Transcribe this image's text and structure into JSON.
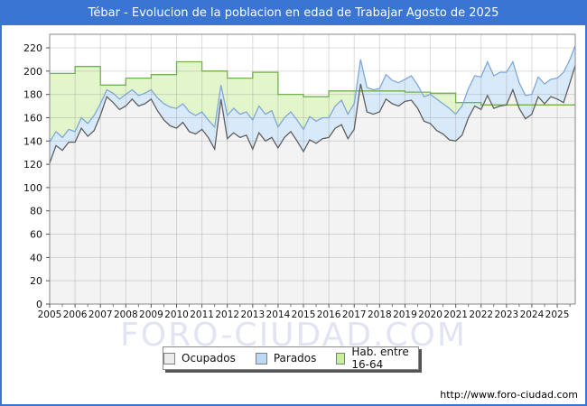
{
  "title_bar": {
    "text": "Tébar - Evolucion de la poblacion en edad de Trabajar Agosto de 2025",
    "bg": "#3a75d4",
    "text_color": "#ffffff"
  },
  "watermark": {
    "text": "FORO-CIUDAD.COM",
    "color": "#e2e4f4"
  },
  "footer": {
    "url_label": "http://www.foro-ciudad.com"
  },
  "legend": {
    "items": [
      {
        "label": "Ocupados",
        "swatch_fill": "#ececec",
        "swatch_border": "#808080"
      },
      {
        "label": "Parados",
        "swatch_fill": "#bcd8f2",
        "swatch_border": "#808080"
      },
      {
        "label": "Hab. entre 16-64",
        "swatch_fill": "#c9ee9e",
        "swatch_border": "#808080"
      }
    ]
  },
  "chart_data": {
    "type": "area",
    "title": "Tébar - Evolucion de la poblacion en edad de Trabajar Agosto de 2025",
    "xlim": [
      2005,
      2025.71
    ],
    "ylim": [
      0,
      220
    ],
    "yticks": [
      0,
      20,
      40,
      60,
      80,
      100,
      120,
      140,
      160,
      180,
      200,
      220
    ],
    "xlabels": [
      "2005",
      "2006",
      "2007",
      "2008",
      "2009",
      "2010",
      "2011",
      "2012",
      "2013",
      "2014",
      "2015",
      "2016",
      "2017",
      "2018",
      "2019",
      "2020",
      "2021",
      "2022",
      "2023",
      "2024",
      "2025"
    ],
    "grid": true,
    "gridline_color": "rgba(140,140,140,0.30)",
    "plot_border_color": "#8a8a8a",
    "x_step": 0.25,
    "series": [
      {
        "name": "Hab. entre 16-64",
        "type": "step",
        "years": [
          2005,
          2006,
          2007,
          2008,
          2009,
          2010,
          2011,
          2012,
          2013,
          2014,
          2015,
          2016,
          2017,
          2018,
          2019,
          2020,
          2021,
          2022,
          2023,
          2024,
          2025
        ],
        "values": [
          198,
          204,
          188,
          194,
          197,
          208,
          200,
          194,
          199,
          180,
          178,
          183,
          183,
          183,
          182,
          181,
          173,
          171,
          171,
          171,
          171
        ],
        "fill": "#e3f5cb",
        "stroke": "#72b150"
      },
      {
        "name": "Ocupados+Parados",
        "type": "line",
        "values": [
          139,
          148,
          143,
          150,
          148,
          160,
          155,
          162,
          172,
          184,
          181,
          176,
          180,
          184,
          179,
          181,
          184,
          177,
          172,
          169,
          168,
          172,
          165,
          162,
          165,
          158,
          152,
          188,
          162,
          168,
          163,
          165,
          158,
          170,
          163,
          166,
          152,
          160,
          165,
          158,
          150,
          161,
          157,
          160,
          160,
          170,
          175,
          163,
          172,
          210,
          186,
          184,
          185,
          197,
          192,
          190,
          193,
          196,
          188,
          178,
          180,
          176,
          172,
          168,
          163,
          170,
          185,
          196,
          195,
          208,
          196,
          199,
          199,
          208,
          190,
          179,
          180,
          195,
          189,
          193,
          194,
          199,
          210,
          222
        ],
        "fill": "#d8e9f9",
        "stroke": "#7fa9d9"
      },
      {
        "name": "Ocupados",
        "type": "line",
        "values": [
          121,
          136,
          132,
          139,
          139,
          151,
          144,
          149,
          162,
          178,
          173,
          167,
          170,
          176,
          170,
          172,
          176,
          166,
          158,
          153,
          151,
          156,
          148,
          146,
          150,
          143,
          133,
          176,
          142,
          147,
          143,
          145,
          133,
          147,
          140,
          143,
          134,
          143,
          148,
          140,
          131,
          141,
          138,
          142,
          143,
          151,
          154,
          142,
          150,
          189,
          165,
          163,
          165,
          176,
          172,
          170,
          174,
          175,
          168,
          157,
          155,
          149,
          146,
          141,
          140,
          145,
          160,
          170,
          167,
          179,
          168,
          170,
          171,
          184,
          168,
          159,
          163,
          178,
          172,
          178,
          176,
          173,
          190,
          205
        ],
        "fill": "#f3f3f3",
        "stroke": "#606060"
      }
    ]
  }
}
